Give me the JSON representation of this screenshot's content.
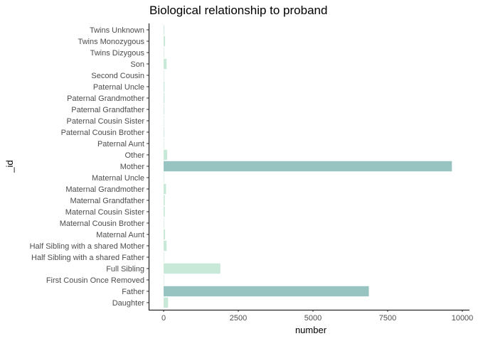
{
  "chart_data": {
    "type": "bar",
    "orientation": "horizontal",
    "title": "Biological relationship to proband",
    "xlabel": "number",
    "ylabel": "_id",
    "xlim": [
      -500,
      10000
    ],
    "x_ticks": [
      0,
      2500,
      5000,
      7500,
      10000
    ],
    "x_tick_labels": [
      "0",
      "2500",
      "5000",
      "7500",
      "10000"
    ],
    "grid": false,
    "legend": "none",
    "categories": [
      "Daughter",
      "Father",
      "First Cousin Once Removed",
      "Full Sibling",
      "Half Sibling with a shared Father",
      "Half Sibling with a shared Mother",
      "Maternal Aunt",
      "Maternal Cousin Brother",
      "Maternal Cousin Sister",
      "Maternal Grandfather",
      "Maternal Grandmother",
      "Maternal Uncle",
      "Mother",
      "Other",
      "Paternal Aunt",
      "Paternal Cousin Brother",
      "Paternal Cousin Sister",
      "Paternal Grandfather",
      "Paternal Grandmother",
      "Paternal Uncle",
      "Second Cousin",
      "Son",
      "Twins Dizygous",
      "Twins Monozygous",
      "Twins Unknown"
    ],
    "values": [
      150,
      6870,
      5,
      1900,
      3,
      100,
      50,
      15,
      40,
      40,
      80,
      10,
      9650,
      120,
      5,
      20,
      5,
      20,
      30,
      30,
      3,
      100,
      15,
      50,
      20
    ],
    "bar_colors": [
      "#c8e8d8",
      "#97c4c1",
      "#c8e8d8",
      "#c8e8d8",
      "#c8e8d8",
      "#c8e8d8",
      "#c8e8d8",
      "#c8e8d8",
      "#c8e8d8",
      "#c8e8d8",
      "#c8e8d8",
      "#c8e8d8",
      "#97c4c1",
      "#c8e8d8",
      "#c8e8d8",
      "#c8e8d8",
      "#c8e8d8",
      "#c8e8d8",
      "#c8e8d8",
      "#c8e8d8",
      "#c8e8d8",
      "#c8e8d8",
      "#c8e8d8",
      "#c8e8d8",
      "#c8e8d8"
    ]
  }
}
